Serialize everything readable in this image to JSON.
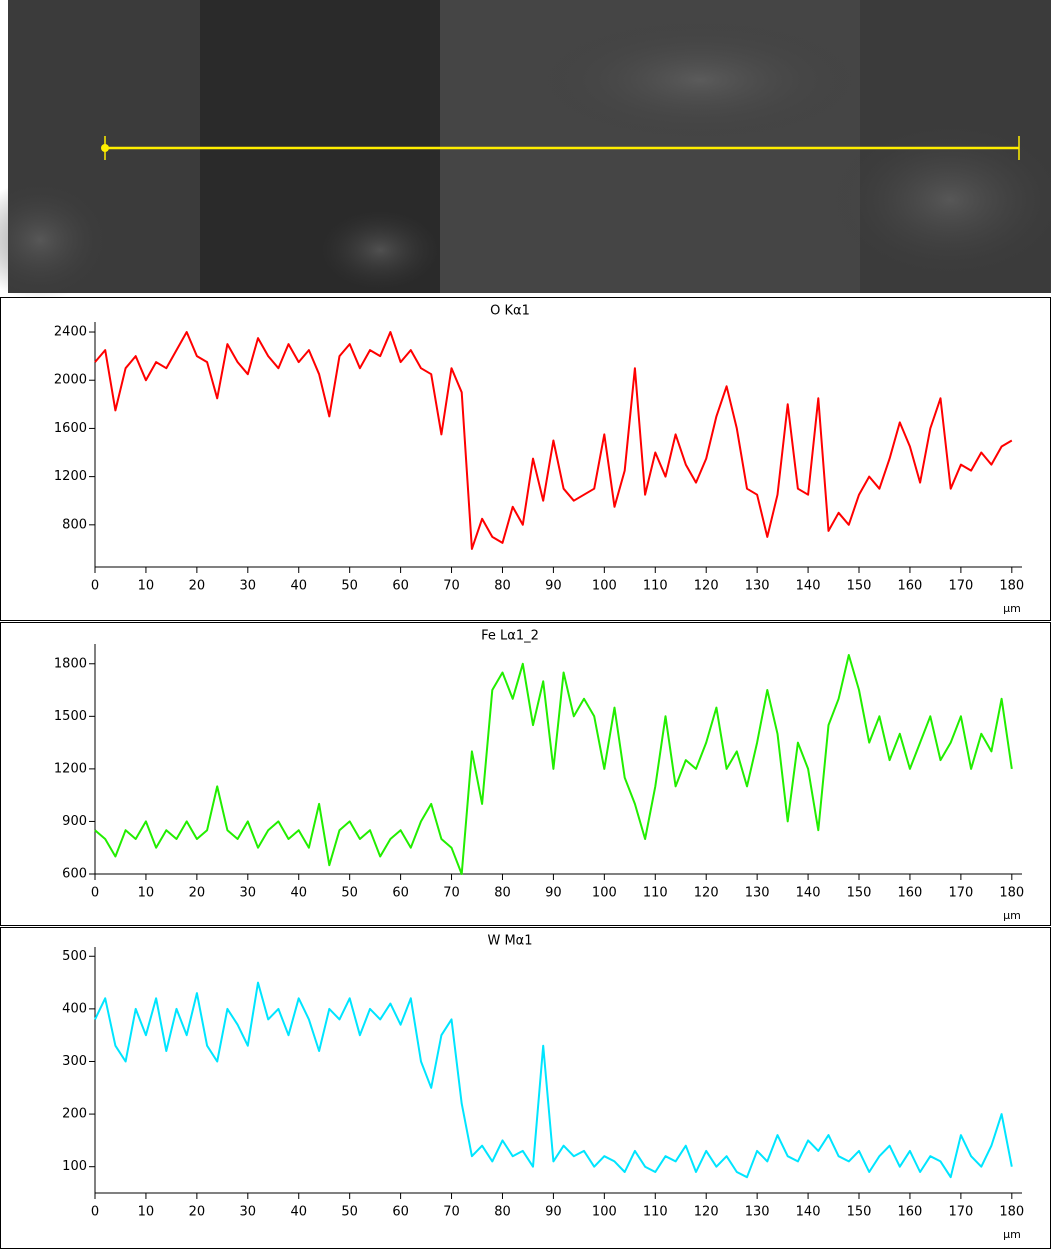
{
  "chart_data": [
    {
      "type": "line",
      "title": "O Kα1",
      "x_label": "µm",
      "x": [
        0,
        2,
        4,
        6,
        8,
        10,
        12,
        14,
        16,
        18,
        20,
        22,
        24,
        26,
        28,
        30,
        32,
        34,
        36,
        38,
        40,
        42,
        44,
        46,
        48,
        50,
        52,
        54,
        56,
        58,
        60,
        62,
        64,
        66,
        68,
        70,
        72,
        74,
        76,
        78,
        80,
        82,
        84,
        86,
        88,
        90,
        92,
        94,
        96,
        98,
        100,
        102,
        104,
        106,
        108,
        110,
        112,
        114,
        116,
        118,
        120,
        122,
        124,
        126,
        128,
        130,
        132,
        134,
        136,
        138,
        140,
        142,
        144,
        146,
        148,
        150,
        152,
        154,
        156,
        158,
        160,
        162,
        164,
        166,
        168,
        170,
        172,
        174,
        176,
        178,
        180
      ],
      "values": [
        2150,
        2250,
        1750,
        2100,
        2200,
        2000,
        2150,
        2100,
        2250,
        2400,
        2200,
        2150,
        1850,
        2300,
        2150,
        2050,
        2350,
        2200,
        2100,
        2300,
        2150,
        2250,
        2050,
        1700,
        2200,
        2300,
        2100,
        2250,
        2200,
        2400,
        2150,
        2250,
        2100,
        2050,
        1550,
        2100,
        1900,
        600,
        850,
        700,
        650,
        950,
        800,
        1350,
        1000,
        1500,
        1100,
        1000,
        1050,
        1100,
        1550,
        950,
        1250,
        2100,
        1050,
        1400,
        1200,
        1550,
        1300,
        1150,
        1350,
        1700,
        1950,
        1600,
        1100,
        1050,
        700,
        1050,
        1800,
        1100,
        1050,
        1850,
        750,
        900,
        800,
        1050,
        1200,
        1100,
        1350,
        1650,
        1450,
        1150,
        1600,
        1850,
        1100,
        1300,
        1250,
        1400,
        1300,
        1450,
        1500
      ],
      "color": "#ff0000",
      "xlim": [
        0,
        182
      ],
      "xticks": [
        0,
        10,
        20,
        30,
        40,
        50,
        60,
        70,
        80,
        90,
        100,
        110,
        120,
        130,
        140,
        150,
        160,
        170,
        180
      ],
      "ylim": [
        450,
        2450
      ],
      "yticks": [
        800,
        1200,
        1600,
        2000,
        2400
      ]
    },
    {
      "type": "line",
      "title": "Fe Lα1_2",
      "x_label": "µm",
      "x": [
        0,
        2,
        4,
        6,
        8,
        10,
        12,
        14,
        16,
        18,
        20,
        22,
        24,
        26,
        28,
        30,
        32,
        34,
        36,
        38,
        40,
        42,
        44,
        46,
        48,
        50,
        52,
        54,
        56,
        58,
        60,
        62,
        64,
        66,
        68,
        70,
        72,
        74,
        76,
        78,
        80,
        82,
        84,
        86,
        88,
        90,
        92,
        94,
        96,
        98,
        100,
        102,
        104,
        106,
        108,
        110,
        112,
        114,
        116,
        118,
        120,
        122,
        124,
        126,
        128,
        130,
        132,
        134,
        136,
        138,
        140,
        142,
        144,
        146,
        148,
        150,
        152,
        154,
        156,
        158,
        160,
        162,
        164,
        166,
        168,
        170,
        172,
        174,
        176,
        178,
        180
      ],
      "values": [
        850,
        800,
        700,
        850,
        800,
        900,
        750,
        850,
        800,
        900,
        800,
        850,
        1100,
        850,
        800,
        900,
        750,
        850,
        900,
        800,
        850,
        750,
        1000,
        650,
        850,
        900,
        800,
        850,
        700,
        800,
        850,
        750,
        900,
        1000,
        800,
        750,
        600,
        1300,
        1000,
        1650,
        1750,
        1600,
        1800,
        1450,
        1700,
        1200,
        1750,
        1500,
        1600,
        1500,
        1200,
        1550,
        1150,
        1000,
        800,
        1100,
        1500,
        1100,
        1250,
        1200,
        1350,
        1550,
        1200,
        1300,
        1100,
        1350,
        1650,
        1400,
        900,
        1350,
        1200,
        850,
        1450,
        1600,
        1850,
        1650,
        1350,
        1500,
        1250,
        1400,
        1200,
        1350,
        1500,
        1250,
        1350,
        1500,
        1200,
        1400,
        1300,
        1600,
        1200
      ],
      "color": "#22ee00",
      "xlim": [
        0,
        182
      ],
      "xticks": [
        0,
        10,
        20,
        30,
        40,
        50,
        60,
        70,
        80,
        90,
        100,
        110,
        120,
        130,
        140,
        150,
        160,
        170,
        180
      ],
      "ylim": [
        600,
        1890
      ],
      "yticks": [
        600,
        900,
        1200,
        1500,
        1800
      ]
    },
    {
      "type": "line",
      "title": "W Mα1",
      "x_label": "µm",
      "x": [
        0,
        2,
        4,
        6,
        8,
        10,
        12,
        14,
        16,
        18,
        20,
        22,
        24,
        26,
        28,
        30,
        32,
        34,
        36,
        38,
        40,
        42,
        44,
        46,
        48,
        50,
        52,
        54,
        56,
        58,
        60,
        62,
        64,
        66,
        68,
        70,
        72,
        74,
        76,
        78,
        80,
        82,
        84,
        86,
        88,
        90,
        92,
        94,
        96,
        98,
        100,
        102,
        104,
        106,
        108,
        110,
        112,
        114,
        116,
        118,
        120,
        122,
        124,
        126,
        128,
        130,
        132,
        134,
        136,
        138,
        140,
        142,
        144,
        146,
        148,
        150,
        152,
        154,
        156,
        158,
        160,
        162,
        164,
        166,
        168,
        170,
        172,
        174,
        176,
        178,
        180
      ],
      "values": [
        380,
        420,
        330,
        300,
        400,
        350,
        420,
        320,
        400,
        350,
        430,
        330,
        300,
        400,
        370,
        330,
        450,
        380,
        400,
        350,
        420,
        380,
        320,
        400,
        380,
        420,
        350,
        400,
        380,
        410,
        370,
        420,
        300,
        250,
        350,
        380,
        220,
        120,
        140,
        110,
        150,
        120,
        130,
        100,
        330,
        110,
        140,
        120,
        130,
        100,
        120,
        110,
        90,
        130,
        100,
        90,
        120,
        110,
        140,
        90,
        130,
        100,
        120,
        90,
        80,
        130,
        110,
        160,
        120,
        110,
        150,
        130,
        160,
        120,
        110,
        130,
        90,
        120,
        140,
        100,
        130,
        90,
        120,
        110,
        80,
        160,
        120,
        100,
        140,
        200,
        100
      ],
      "color": "#00e5ff",
      "xlim": [
        0,
        182
      ],
      "xticks": [
        0,
        10,
        20,
        30,
        40,
        50,
        60,
        70,
        80,
        90,
        100,
        110,
        120,
        130,
        140,
        150,
        160,
        170,
        180
      ],
      "ylim": [
        50,
        510
      ],
      "yticks": [
        100,
        200,
        300,
        400,
        500
      ]
    }
  ]
}
